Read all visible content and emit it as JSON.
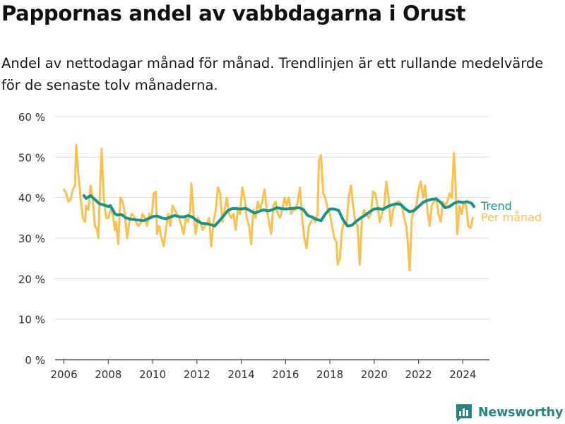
{
  "title": "Pappornas andel av vabbdagarna i Orust",
  "subtitle": "Andel av nettodagar månad för månad. Trendlinjen är ett rullande medelvärde för de senaste tolv månaderna.",
  "brand": {
    "name": "Newsworthy",
    "color": "#26857c"
  },
  "chart_data": {
    "type": "line",
    "ylim": [
      0,
      60
    ],
    "xlim": [
      2005.6,
      2025.2
    ],
    "y_ticks": [
      0,
      10,
      20,
      30,
      40,
      50,
      60
    ],
    "y_tick_labels": [
      "0 %",
      "10 %",
      "20 %",
      "30 %",
      "40 %",
      "50 %",
      "60 %"
    ],
    "x_ticks": [
      2006,
      2008,
      2010,
      2012,
      2014,
      2016,
      2018,
      2020,
      2022,
      2024
    ],
    "x_tick_labels": [
      "2006",
      "2008",
      "2010",
      "2012",
      "2014",
      "2016",
      "2018",
      "2020",
      "2022",
      "2024"
    ],
    "grid": "horizontal",
    "legend": "right",
    "series": [
      {
        "name": "Per månad",
        "color": "#fbc04d",
        "points": [
          [
            2006.0,
            42
          ],
          [
            2006.1,
            41
          ],
          [
            2006.2,
            39
          ],
          [
            2006.3,
            39.5
          ],
          [
            2006.4,
            42
          ],
          [
            2006.5,
            43
          ],
          [
            2006.55,
            53
          ],
          [
            2006.65,
            46
          ],
          [
            2006.75,
            40
          ],
          [
            2006.85,
            35
          ],
          [
            2006.95,
            34
          ],
          [
            2007.0,
            38
          ],
          [
            2007.1,
            37
          ],
          [
            2007.2,
            43
          ],
          [
            2007.3,
            40
          ],
          [
            2007.4,
            33
          ],
          [
            2007.5,
            32
          ],
          [
            2007.55,
            30
          ],
          [
            2007.65,
            45
          ],
          [
            2007.7,
            52
          ],
          [
            2007.8,
            40
          ],
          [
            2007.9,
            35
          ],
          [
            2008.0,
            35
          ],
          [
            2008.1,
            37
          ],
          [
            2008.2,
            36
          ],
          [
            2008.3,
            32
          ],
          [
            2008.35,
            34
          ],
          [
            2008.45,
            28.5
          ],
          [
            2008.55,
            40
          ],
          [
            2008.65,
            39
          ],
          [
            2008.75,
            36
          ],
          [
            2008.85,
            30
          ],
          [
            2008.95,
            34
          ],
          [
            2009.05,
            36
          ],
          [
            2009.15,
            35.5
          ],
          [
            2009.25,
            34
          ],
          [
            2009.35,
            33
          ],
          [
            2009.45,
            33.5
          ],
          [
            2009.55,
            36
          ],
          [
            2009.65,
            35
          ],
          [
            2009.75,
            33
          ],
          [
            2009.85,
            36
          ],
          [
            2009.95,
            35
          ],
          [
            2010.05,
            41
          ],
          [
            2010.15,
            41.5
          ],
          [
            2010.2,
            31
          ],
          [
            2010.3,
            33
          ],
          [
            2010.4,
            30
          ],
          [
            2010.5,
            28
          ],
          [
            2010.6,
            32
          ],
          [
            2010.7,
            36
          ],
          [
            2010.8,
            33
          ],
          [
            2010.9,
            38
          ],
          [
            2011.0,
            37
          ],
          [
            2011.1,
            36
          ],
          [
            2011.2,
            35
          ],
          [
            2011.3,
            33
          ],
          [
            2011.4,
            31
          ],
          [
            2011.5,
            35
          ],
          [
            2011.6,
            34
          ],
          [
            2011.7,
            37
          ],
          [
            2011.75,
            43.5
          ],
          [
            2011.85,
            36
          ],
          [
            2011.95,
            31
          ],
          [
            2012.05,
            35
          ],
          [
            2012.15,
            34
          ],
          [
            2012.25,
            32
          ],
          [
            2012.35,
            33
          ],
          [
            2012.45,
            33.5
          ],
          [
            2012.55,
            35
          ],
          [
            2012.65,
            28
          ],
          [
            2012.75,
            34
          ],
          [
            2012.85,
            37
          ],
          [
            2012.95,
            42.5
          ],
          [
            2013.05,
            41
          ],
          [
            2013.15,
            34
          ],
          [
            2013.25,
            37
          ],
          [
            2013.35,
            40
          ],
          [
            2013.45,
            36
          ],
          [
            2013.55,
            35
          ],
          [
            2013.65,
            36
          ],
          [
            2013.75,
            32
          ],
          [
            2013.85,
            37
          ],
          [
            2013.95,
            36
          ],
          [
            2014.05,
            42.5
          ],
          [
            2014.15,
            40
          ],
          [
            2014.25,
            35
          ],
          [
            2014.35,
            33
          ],
          [
            2014.45,
            28.5
          ],
          [
            2014.55,
            37
          ],
          [
            2014.65,
            35
          ],
          [
            2014.75,
            39
          ],
          [
            2014.85,
            37
          ],
          [
            2014.95,
            39
          ],
          [
            2015.05,
            42
          ],
          [
            2015.15,
            37
          ],
          [
            2015.25,
            34
          ],
          [
            2015.35,
            31
          ],
          [
            2015.45,
            38
          ],
          [
            2015.55,
            39
          ],
          [
            2015.65,
            36
          ],
          [
            2015.75,
            35
          ],
          [
            2015.85,
            37
          ],
          [
            2015.95,
            40
          ],
          [
            2016.05,
            38
          ],
          [
            2016.15,
            40
          ],
          [
            2016.25,
            36
          ],
          [
            2016.35,
            37
          ],
          [
            2016.45,
            37
          ],
          [
            2016.55,
            39
          ],
          [
            2016.65,
            42.5
          ],
          [
            2016.75,
            35
          ],
          [
            2016.85,
            30
          ],
          [
            2016.95,
            27.5
          ],
          [
            2017.05,
            33
          ],
          [
            2017.15,
            34
          ],
          [
            2017.25,
            35
          ],
          [
            2017.35,
            34
          ],
          [
            2017.45,
            36
          ],
          [
            2017.5,
            49
          ],
          [
            2017.6,
            50.5
          ],
          [
            2017.7,
            41
          ],
          [
            2017.8,
            40
          ],
          [
            2017.9,
            37
          ],
          [
            2018.0,
            36
          ],
          [
            2018.1,
            33
          ],
          [
            2018.2,
            30
          ],
          [
            2018.3,
            29
          ],
          [
            2018.35,
            23.5
          ],
          [
            2018.45,
            25
          ],
          [
            2018.55,
            32
          ],
          [
            2018.65,
            34
          ],
          [
            2018.75,
            33
          ],
          [
            2018.85,
            40
          ],
          [
            2018.95,
            43
          ],
          [
            2019.05,
            38
          ],
          [
            2019.15,
            34
          ],
          [
            2019.25,
            33
          ],
          [
            2019.35,
            23.5
          ],
          [
            2019.45,
            35
          ],
          [
            2019.55,
            37
          ],
          [
            2019.65,
            36
          ],
          [
            2019.75,
            35
          ],
          [
            2019.85,
            36
          ],
          [
            2019.95,
            41.5
          ],
          [
            2020.05,
            41
          ],
          [
            2020.15,
            38
          ],
          [
            2020.25,
            34
          ],
          [
            2020.35,
            36
          ],
          [
            2020.45,
            38
          ],
          [
            2020.55,
            44
          ],
          [
            2020.65,
            40
          ],
          [
            2020.75,
            33
          ],
          [
            2020.85,
            37
          ],
          [
            2020.95,
            38
          ],
          [
            2021.05,
            39
          ],
          [
            2021.15,
            39
          ],
          [
            2021.25,
            38
          ],
          [
            2021.35,
            35
          ],
          [
            2021.45,
            33
          ],
          [
            2021.5,
            30
          ],
          [
            2021.6,
            22
          ],
          [
            2021.7,
            35
          ],
          [
            2021.8,
            37
          ],
          [
            2021.9,
            38
          ],
          [
            2022.0,
            42
          ],
          [
            2022.1,
            44
          ],
          [
            2022.2,
            40
          ],
          [
            2022.3,
            43
          ],
          [
            2022.4,
            37
          ],
          [
            2022.5,
            33
          ],
          [
            2022.6,
            38
          ],
          [
            2022.7,
            39
          ],
          [
            2022.8,
            40
          ],
          [
            2022.9,
            36
          ],
          [
            2023.0,
            34
          ],
          [
            2023.1,
            39
          ],
          [
            2023.2,
            38
          ],
          [
            2023.3,
            39
          ],
          [
            2023.4,
            41
          ],
          [
            2023.5,
            40
          ],
          [
            2023.6,
            51
          ],
          [
            2023.65,
            46
          ],
          [
            2023.75,
            31
          ],
          [
            2023.85,
            38
          ],
          [
            2023.95,
            36
          ],
          [
            2024.05,
            39
          ],
          [
            2024.15,
            38
          ],
          [
            2024.25,
            33
          ],
          [
            2024.35,
            32.5
          ],
          [
            2024.45,
            35
          ]
        ]
      },
      {
        "name": "Trend",
        "color": "#13958a",
        "points": [
          [
            2006.9,
            40.5
          ],
          [
            2007.0,
            39.8
          ],
          [
            2007.2,
            40.5
          ],
          [
            2007.4,
            39.5
          ],
          [
            2007.6,
            38.5
          ],
          [
            2007.8,
            38.2
          ],
          [
            2008.0,
            37.8
          ],
          [
            2008.1,
            38
          ],
          [
            2008.2,
            37
          ],
          [
            2008.3,
            36
          ],
          [
            2008.4,
            35.7
          ],
          [
            2008.6,
            35.8
          ],
          [
            2008.8,
            35
          ],
          [
            2009.0,
            34.7
          ],
          [
            2009.3,
            34.5
          ],
          [
            2009.6,
            34.3
          ],
          [
            2009.8,
            34.8
          ],
          [
            2010.0,
            35.3
          ],
          [
            2010.2,
            35.5
          ],
          [
            2010.4,
            35
          ],
          [
            2010.6,
            34.8
          ],
          [
            2010.8,
            35.2
          ],
          [
            2011.0,
            35.6
          ],
          [
            2011.2,
            35.3
          ],
          [
            2011.4,
            35.2
          ],
          [
            2011.6,
            35.6
          ],
          [
            2011.8,
            35.2
          ],
          [
            2012.0,
            34.3
          ],
          [
            2012.2,
            33.7
          ],
          [
            2012.5,
            33.5
          ],
          [
            2012.7,
            33.2
          ],
          [
            2012.8,
            33
          ],
          [
            2013.0,
            34.2
          ],
          [
            2013.2,
            35.5
          ],
          [
            2013.4,
            36.8
          ],
          [
            2013.6,
            37.3
          ],
          [
            2013.8,
            37.3
          ],
          [
            2014.0,
            37.2
          ],
          [
            2014.2,
            37.4
          ],
          [
            2014.4,
            36.8
          ],
          [
            2014.6,
            36.2
          ],
          [
            2014.8,
            36.6
          ],
          [
            2015.0,
            37
          ],
          [
            2015.2,
            36.7
          ],
          [
            2015.4,
            37
          ],
          [
            2015.6,
            37.5
          ],
          [
            2015.8,
            37.3
          ],
          [
            2016.0,
            37.2
          ],
          [
            2016.2,
            37.3
          ],
          [
            2016.4,
            37.4
          ],
          [
            2016.6,
            37.5
          ],
          [
            2016.8,
            37.1
          ],
          [
            2017.0,
            35.6
          ],
          [
            2017.2,
            35.2
          ],
          [
            2017.4,
            34.6
          ],
          [
            2017.6,
            34.3
          ],
          [
            2017.8,
            36
          ],
          [
            2018.0,
            37.2
          ],
          [
            2018.2,
            37.2
          ],
          [
            2018.4,
            36.8
          ],
          [
            2018.6,
            34.5
          ],
          [
            2018.8,
            33
          ],
          [
            2019.0,
            33.2
          ],
          [
            2019.2,
            34.2
          ],
          [
            2019.4,
            35
          ],
          [
            2019.6,
            35.7
          ],
          [
            2019.8,
            36.5
          ],
          [
            2020.0,
            37.2
          ],
          [
            2020.2,
            37.3
          ],
          [
            2020.4,
            37.1
          ],
          [
            2020.6,
            37.8
          ],
          [
            2020.8,
            38.2
          ],
          [
            2021.0,
            38.5
          ],
          [
            2021.2,
            38.3
          ],
          [
            2021.4,
            37.2
          ],
          [
            2021.6,
            36.5
          ],
          [
            2021.8,
            36.8
          ],
          [
            2022.0,
            37.8
          ],
          [
            2022.2,
            38.8
          ],
          [
            2022.4,
            39.3
          ],
          [
            2022.6,
            39.6
          ],
          [
            2022.8,
            39.7
          ],
          [
            2023.0,
            38.8
          ],
          [
            2023.2,
            37.5
          ],
          [
            2023.4,
            37.8
          ],
          [
            2023.6,
            38.6
          ],
          [
            2023.8,
            39
          ],
          [
            2024.0,
            38.8
          ],
          [
            2024.2,
            39
          ],
          [
            2024.4,
            38.6
          ],
          [
            2024.5,
            37.8
          ]
        ]
      }
    ]
  }
}
